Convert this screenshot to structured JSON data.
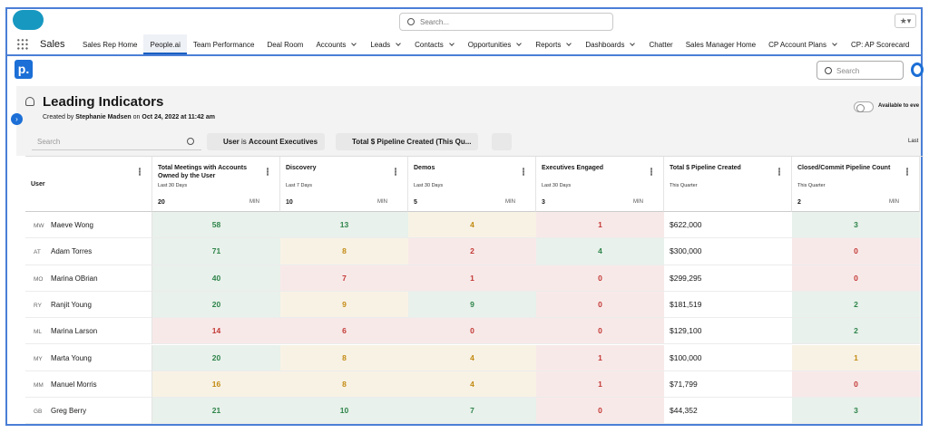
{
  "header": {
    "search": "Search...",
    "app": "Sales",
    "tabs": [
      "Sales Rep Home",
      "People.ai",
      "Team Performance",
      "Deal Room",
      "Accounts",
      "Leads",
      "Contacts",
      "Opportunities",
      "Reports",
      "Dashboards",
      "Chatter",
      "Sales Manager Home",
      "CP Account Plans",
      "CP: AP Scorecard"
    ]
  },
  "page": {
    "search": "Search",
    "title": "Leading Indicators",
    "created_by": "Created by",
    "author": "Stephanie Madsen",
    "on": "on",
    "date": "Oct 24, 2022 at 11:42 am",
    "toggle_label": "Available to eve",
    "filter_search": "Search",
    "filters": [
      {
        "field": "User",
        "op": "is",
        "value": "Account Executives"
      },
      {
        "field": "Total $ Pipeline Created (This Qu...",
        "op": "",
        "value": ""
      }
    ],
    "last": "Last"
  },
  "table": {
    "user_header": "User",
    "columns": [
      {
        "name": "Total Meetings with Accounts Owned by the User",
        "period": "Last 30 Days",
        "target": 20,
        "agg": "MIN"
      },
      {
        "name": "Discovery",
        "period": "Last 7 Days",
        "target": 10,
        "agg": "MIN"
      },
      {
        "name": "Demos",
        "period": "Last 30 Days",
        "target": 5,
        "agg": "MIN"
      },
      {
        "name": "Executives Engaged",
        "period": "Last 30 Days",
        "target": 3,
        "agg": "MIN"
      },
      {
        "name": "Total $ Pipeline Created",
        "period": "This Quarter"
      },
      {
        "name": "Closed/Commit Pipeline Count",
        "period": "This Quarter",
        "target": 2,
        "agg": "MIN"
      }
    ],
    "rows": [
      {
        "initials": "MW",
        "name": "Maeve Wong",
        "cells": [
          58,
          13,
          4,
          1,
          "$622,000",
          3
        ],
        "colors": [
          "#2e844a",
          "#2e844a",
          "#c28a12",
          "#c23934",
          null,
          "#2e844a"
        ]
      },
      {
        "initials": "AT",
        "name": "Adam Torres",
        "cells": [
          71,
          8,
          2,
          4,
          "$300,000",
          0
        ],
        "colors": [
          "#2e844a",
          "#c28a12",
          "#c23934",
          "#2e844a",
          null,
          "#c23934"
        ]
      },
      {
        "initials": "MO",
        "name": "Marina OBrian",
        "cells": [
          40,
          7,
          1,
          0,
          "$299,295",
          0
        ],
        "colors": [
          "#2e844a",
          "#c23934",
          "#c23934",
          "#c23934",
          null,
          "#c23934"
        ]
      },
      {
        "initials": "RY",
        "name": "Ranjit Young",
        "cells": [
          20,
          9,
          9,
          0,
          "$181,519",
          2
        ],
        "colors": [
          "#2e844a",
          "#c28a12",
          "#2e844a",
          "#c23934",
          null,
          "#2e844a"
        ]
      },
      {
        "initials": "ML",
        "name": "Marina Larson",
        "cells": [
          14,
          6,
          0,
          0,
          "$129,100",
          2
        ],
        "colors": [
          "#c23934",
          "#c23934",
          "#c23934",
          "#c23934",
          null,
          "#2e844a"
        ]
      },
      {
        "initials": "MY",
        "name": "Marta Young",
        "cells": [
          20,
          8,
          4,
          1,
          "$100,000",
          1
        ],
        "colors": [
          "#2e844a",
          "#c28a12",
          "#c28a12",
          "#c23934",
          null,
          "#c28a12"
        ]
      },
      {
        "initials": "MM",
        "name": "Manuel Morris",
        "cells": [
          16,
          8,
          4,
          1,
          "$71,799",
          0
        ],
        "colors": [
          "#c28a12",
          "#c28a12",
          "#c28a12",
          "#c23934",
          null,
          "#c23934"
        ]
      },
      {
        "initials": "GB",
        "name": "Greg Berry",
        "cells": [
          21,
          10,
          7,
          0,
          "$44,352",
          3
        ],
        "colors": [
          "#2e844a",
          "#2e844a",
          "#2e844a",
          "#c23934",
          null,
          "#2e844a"
        ]
      }
    ]
  }
}
